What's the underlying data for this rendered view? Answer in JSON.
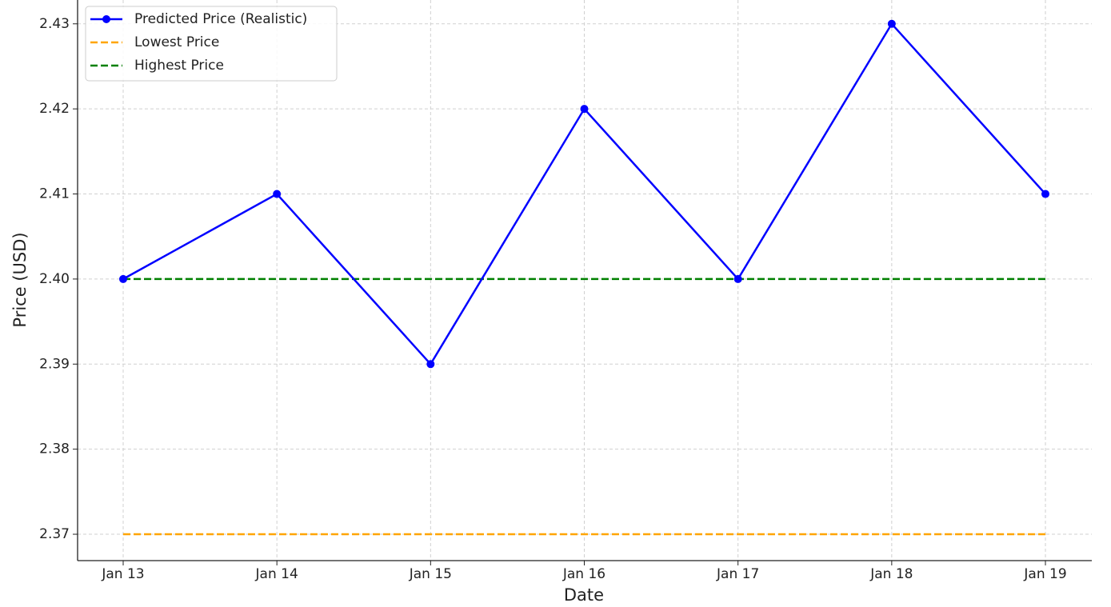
{
  "chart_data": {
    "type": "line",
    "x_label": "Date",
    "y_label": "Price (USD)",
    "categories": [
      "Jan 13",
      "Jan 14",
      "Jan 15",
      "Jan 16",
      "Jan 17",
      "Jan 18",
      "Jan 19"
    ],
    "series": [
      {
        "name": "Predicted Price (Realistic)",
        "color": "#0000ff",
        "style": "solid",
        "marker": true,
        "values": [
          2.4,
          2.41,
          2.39,
          2.42,
          2.4,
          2.43,
          2.41
        ]
      },
      {
        "name": "Lowest Price",
        "color": "#ffa500",
        "style": "dashed",
        "marker": false,
        "values": [
          2.37,
          2.37,
          2.37,
          2.37,
          2.37,
          2.37,
          2.37
        ]
      },
      {
        "name": "Highest Price",
        "color": "#008000",
        "style": "dashed",
        "marker": false,
        "values": [
          2.4,
          2.4,
          2.4,
          2.4,
          2.4,
          2.4,
          2.4
        ]
      }
    ],
    "ylim": [
      2.3669,
      2.4328
    ],
    "yticks": [
      2.37,
      2.38,
      2.39,
      {
        "value": 2.4,
        "label": "2.40"
      },
      2.41,
      2.42,
      2.43
    ],
    "grid": true,
    "legend": "upper left"
  }
}
